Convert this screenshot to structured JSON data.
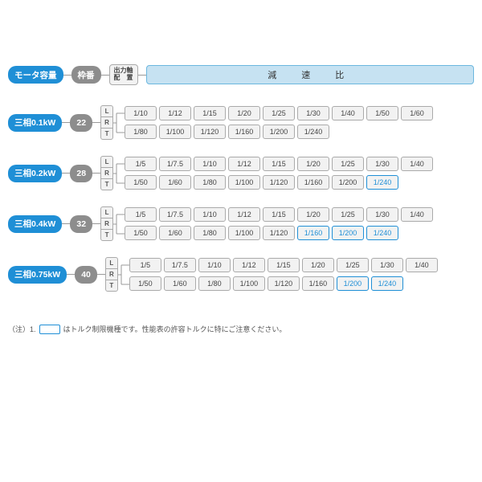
{
  "header": {
    "motor_capacity": "モータ容量",
    "frame_no": "枠番",
    "output_shaft": "出力軸\n配　置",
    "reduction_ratio": "減　速　比"
  },
  "lrt": [
    "L",
    "R",
    "T"
  ],
  "rows": [
    {
      "motor": "三相0.1kW",
      "frame": "22",
      "ratios": [
        [
          {
            "v": "1/10"
          },
          {
            "v": "1/12"
          },
          {
            "v": "1/15"
          },
          {
            "v": "1/20"
          },
          {
            "v": "1/25"
          },
          {
            "v": "1/30"
          },
          {
            "v": "1/40"
          },
          {
            "v": "1/50"
          },
          {
            "v": "1/60"
          }
        ],
        [
          {
            "v": "1/80"
          },
          {
            "v": "1/100"
          },
          {
            "v": "1/120"
          },
          {
            "v": "1/160"
          },
          {
            "v": "1/200"
          },
          {
            "v": "1/240"
          }
        ]
      ]
    },
    {
      "motor": "三相0.2kW",
      "frame": "28",
      "ratios": [
        [
          {
            "v": "1/5"
          },
          {
            "v": "1/7.5"
          },
          {
            "v": "1/10"
          },
          {
            "v": "1/12"
          },
          {
            "v": "1/15"
          },
          {
            "v": "1/20"
          },
          {
            "v": "1/25"
          },
          {
            "v": "1/30"
          },
          {
            "v": "1/40"
          }
        ],
        [
          {
            "v": "1/50"
          },
          {
            "v": "1/60"
          },
          {
            "v": "1/80"
          },
          {
            "v": "1/100"
          },
          {
            "v": "1/120"
          },
          {
            "v": "1/160"
          },
          {
            "v": "1/200"
          },
          {
            "v": "1/240",
            "hl": true
          }
        ]
      ]
    },
    {
      "motor": "三相0.4kW",
      "frame": "32",
      "ratios": [
        [
          {
            "v": "1/5"
          },
          {
            "v": "1/7.5"
          },
          {
            "v": "1/10"
          },
          {
            "v": "1/12"
          },
          {
            "v": "1/15"
          },
          {
            "v": "1/20"
          },
          {
            "v": "1/25"
          },
          {
            "v": "1/30"
          },
          {
            "v": "1/40"
          }
        ],
        [
          {
            "v": "1/50"
          },
          {
            "v": "1/60"
          },
          {
            "v": "1/80"
          },
          {
            "v": "1/100"
          },
          {
            "v": "1/120"
          },
          {
            "v": "1/160",
            "hl": true
          },
          {
            "v": "1/200",
            "hl": true
          },
          {
            "v": "1/240",
            "hl": true
          }
        ]
      ]
    },
    {
      "motor": "三相0.75kW",
      "frame": "40",
      "ratios": [
        [
          {
            "v": "1/5"
          },
          {
            "v": "1/7.5"
          },
          {
            "v": "1/10"
          },
          {
            "v": "1/12"
          },
          {
            "v": "1/15"
          },
          {
            "v": "1/20"
          },
          {
            "v": "1/25"
          },
          {
            "v": "1/30"
          },
          {
            "v": "1/40"
          }
        ],
        [
          {
            "v": "1/50"
          },
          {
            "v": "1/60"
          },
          {
            "v": "1/80"
          },
          {
            "v": "1/100"
          },
          {
            "v": "1/120"
          },
          {
            "v": "1/160"
          },
          {
            "v": "1/200",
            "hl": true
          },
          {
            "v": "1/240",
            "hl": true
          }
        ]
      ]
    }
  ],
  "note": {
    "prefix": "（注）1.",
    "text": "はトルク制限機種です。性能表の許容トルクに特にご注意ください。"
  },
  "colors": {
    "blue": "#1f8fd6",
    "lightblue_bg": "#c6e2f2",
    "lightblue_border": "#6cb7df",
    "gray": "#8d8d8d",
    "cell_bg": "#f2f2f2",
    "cell_border": "#aaaaaa",
    "connector": "#999999"
  }
}
